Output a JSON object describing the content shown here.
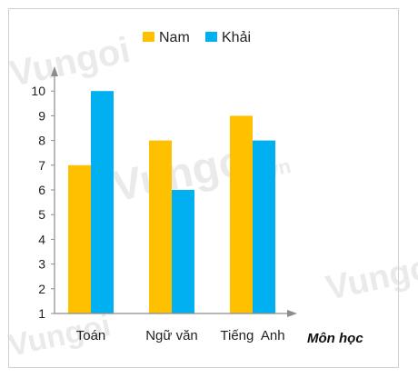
{
  "chart_data": {
    "type": "bar",
    "categories": [
      "Toán",
      "Ngữ văn",
      "Tiếng  Anh"
    ],
    "series": [
      {
        "name": "Nam",
        "values": [
          7,
          8,
          9
        ],
        "color": "#FFC000"
      },
      {
        "name": "Khải",
        "values": [
          10,
          6,
          8
        ],
        "color": "#00B0F0"
      }
    ],
    "xlabel": "Môn học",
    "ylabel": "",
    "ylim": [
      1,
      10
    ],
    "yticks": [
      "1",
      "2",
      "3",
      "4",
      "5",
      "6",
      "7",
      "8",
      "9",
      "10"
    ],
    "legend_position": "top",
    "grid": false
  },
  "watermark": {
    "brand_text": "Vungoi",
    "brand_suffix": ".vn"
  }
}
